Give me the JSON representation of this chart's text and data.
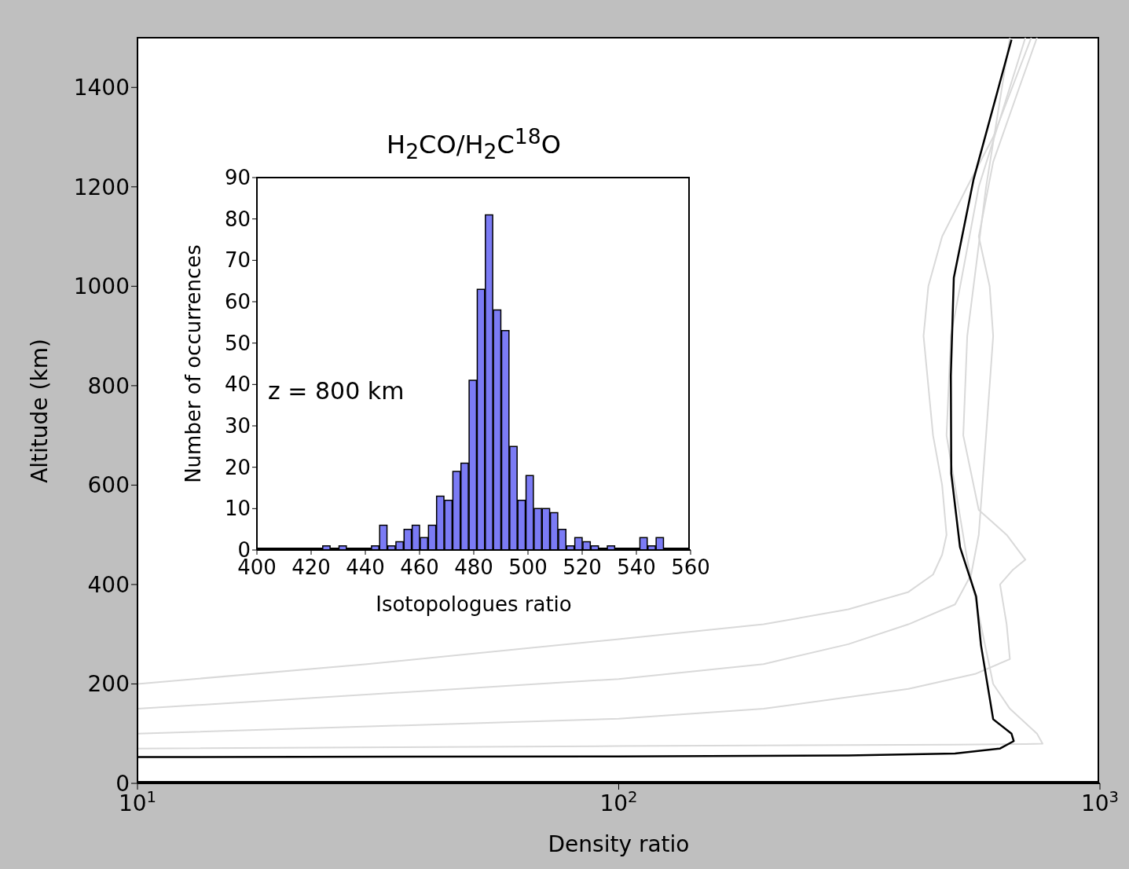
{
  "chart_data": [
    {
      "type": "line",
      "xlabel": "Density ratio",
      "ylabel": "Altitude (km)",
      "log": "x",
      "xlim": [
        10,
        1000
      ],
      "xticks": [
        {
          "value": 10,
          "label": "10$^{1}$"
        },
        {
          "value": 100,
          "label": "10$^{2}$"
        },
        {
          "value": 1000,
          "label": "10$^{3}$"
        }
      ],
      "ylim": [
        0,
        1500
      ],
      "yticks": [
        0,
        200,
        400,
        600,
        800,
        1000,
        1200,
        1400
      ],
      "marker": "none",
      "line_style": "solid",
      "series": [
        {
          "color": "#d9d9d9",
          "x": [
            10,
            30,
            100,
            200,
            300,
            400,
            450,
            470,
            480,
            470,
            450,
            430,
            440,
            470,
            530,
            600,
            720
          ],
          "values": [
            200,
            240,
            290,
            320,
            350,
            385,
            420,
            460,
            500,
            600,
            700,
            900,
            1000,
            1100,
            1200,
            1300,
            1500
          ]
        },
        {
          "color": "#d9d9d9",
          "x": [
            10,
            100,
            200,
            300,
            400,
            500,
            540,
            560,
            580,
            600,
            590,
            560,
            600,
            680,
            740
          ],
          "values": [
            150,
            210,
            240,
            280,
            320,
            360,
            420,
            500,
            700,
            900,
            1000,
            1100,
            1250,
            1400,
            1500
          ]
        },
        {
          "color": "#d9d9d9",
          "x": [
            10,
            100,
            200,
            400,
            550,
            650,
            640,
            620,
            660,
            700,
            640,
            560,
            520,
            530,
            580,
            650
          ],
          "values": [
            100,
            130,
            150,
            190,
            220,
            250,
            320,
            400,
            430,
            450,
            500,
            550,
            700,
            900,
            1200,
            1500
          ]
        },
        {
          "color": "#d9d9d9",
          "x": [
            10,
            100,
            300,
            500,
            700,
            760,
            740,
            650,
            600,
            530,
            480,
            490,
            560,
            700
          ],
          "values": [
            70,
            75,
            77,
            78,
            79,
            80,
            100,
            150,
            200,
            450,
            700,
            900,
            1200,
            1500
          ]
        },
        {
          "color": "#000000",
          "x": [
            10,
            100,
            300,
            500,
            620,
            662,
            655,
            600,
            566,
            553,
            512,
            491,
            490,
            497,
            546,
            655
          ],
          "values": [
            53,
            54,
            56,
            60,
            70,
            85,
            100,
            129,
            278,
            376,
            475,
            623,
            820,
            1017,
            1214,
            1496
          ]
        }
      ]
    },
    {
      "type": "histogram",
      "title": "H$_{2}$CO/H$_{2}$C$^{18}$O",
      "xlabel": "Isotopologues ratio",
      "ylabel": "Number of occurrences",
      "annotations": [
        "z = 800 km"
      ],
      "color": "#7b7bf5",
      "xlim": [
        400,
        560
      ],
      "xticks": [
        400,
        420,
        440,
        460,
        480,
        500,
        520,
        540,
        560
      ],
      "ylim": [
        0,
        90
      ],
      "yticks": [
        0,
        10,
        20,
        30,
        40,
        50,
        60,
        70,
        80,
        90
      ],
      "bins": [
        424,
        427,
        430,
        433,
        436,
        439,
        442,
        445,
        448,
        451,
        454,
        457,
        460,
        463,
        466,
        469,
        472,
        475,
        478,
        481,
        484,
        487,
        490,
        493,
        496,
        499,
        502,
        505,
        508,
        511,
        514,
        517,
        520,
        523,
        526,
        529,
        532,
        535,
        538,
        541,
        544,
        547,
        550
      ],
      "values": [
        1,
        0,
        1,
        0,
        0,
        0,
        1,
        6,
        1,
        2,
        5,
        6,
        3,
        6,
        13,
        12,
        19,
        21,
        41,
        63,
        81,
        58,
        53,
        25,
        12,
        18,
        10,
        10,
        9,
        5,
        1,
        3,
        2,
        1,
        0,
        1,
        0,
        0,
        0,
        3,
        1,
        3
      ]
    }
  ]
}
